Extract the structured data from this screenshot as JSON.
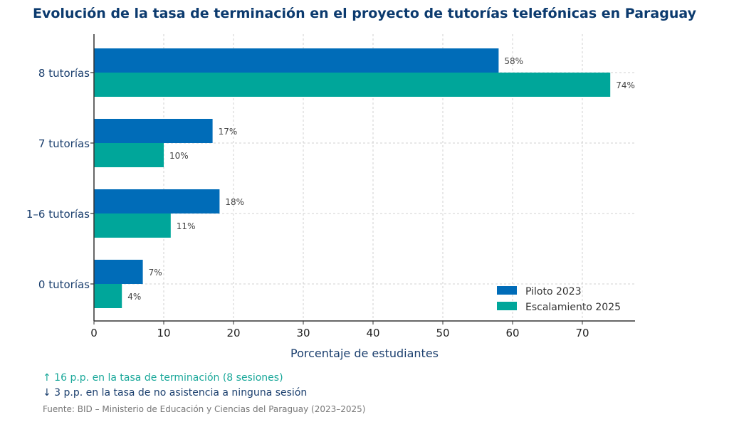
{
  "chart_data": {
    "type": "bar",
    "orientation": "horizontal",
    "title": "Evolución de la tasa de terminación en el proyecto de tutorías telefónicas en Paraguay",
    "xlabel": "Porcentaje de estudiantes",
    "ylabel": "",
    "categories": [
      "8 tutorías",
      "7 tutorías",
      "1–6 tutorías",
      "0 tutorías"
    ],
    "series": [
      {
        "name": "Piloto 2023",
        "color": "#006cb8",
        "values": [
          58,
          17,
          18,
          7
        ],
        "labels": [
          "58%",
          "17%",
          "18%",
          "7%"
        ]
      },
      {
        "name": "Escalamiento 2025",
        "color": "#00a69a",
        "values": [
          74,
          10,
          11,
          4
        ],
        "labels": [
          "74%",
          "10%",
          "11%",
          "4%"
        ]
      }
    ],
    "xlim": [
      0,
      77.5
    ],
    "xticks": [
      0,
      10,
      20,
      30,
      40,
      50,
      60,
      70
    ],
    "grid": true,
    "legend": "bottom-right"
  },
  "notes": {
    "increase": "↑ 16 p.p. en la tasa de terminación (8 sesiones)",
    "decrease": "↓ 3 p.p. en la tasa de no asistencia a ninguna sesión",
    "source": "Fuente: BID – Ministerio de Educación y Ciencias del Paraguay (2023–2025)"
  },
  "colors": {
    "title": "#0b3a6e",
    "axis_label": "#1b3f6e",
    "increase_note": "#1aa89a",
    "decrease_note": "#1b3f6e",
    "source_note": "#777777"
  }
}
